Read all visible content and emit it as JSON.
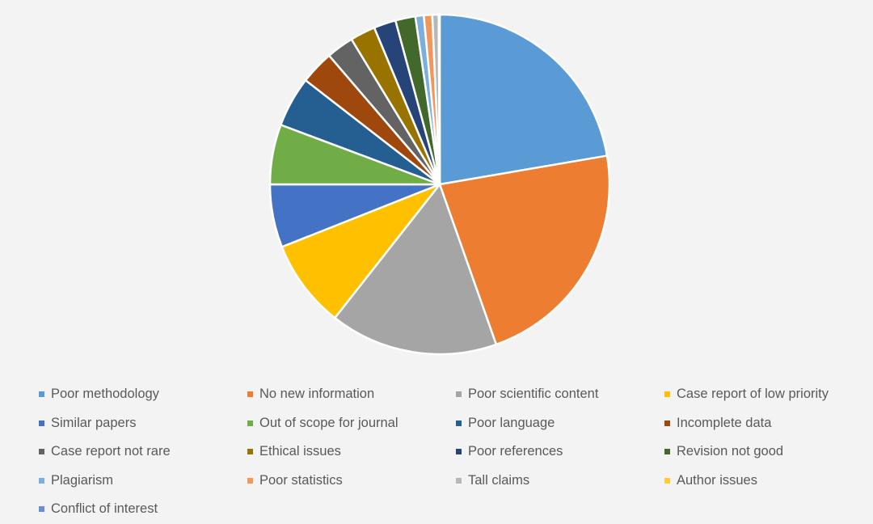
{
  "chart_data": {
    "type": "pie",
    "title": "",
    "legend_position": "bottom",
    "start_angle_deg": 0,
    "direction": "clockwise",
    "slices": [
      {
        "label": "Poor methodology",
        "value": 22.3,
        "color": "#5B9BD5"
      },
      {
        "label": "No new information",
        "value": 22.3,
        "color": "#ED7D31"
      },
      {
        "label": "Poor scientific content",
        "value": 16.0,
        "color": "#A5A5A5"
      },
      {
        "label": "Case report of low priority",
        "value": 8.4,
        "color": "#FFC000"
      },
      {
        "label": "Similar papers",
        "value": 6.0,
        "color": "#4472C4"
      },
      {
        "label": "Out of scope for journal",
        "value": 5.7,
        "color": "#70AD47"
      },
      {
        "label": "Poor language",
        "value": 4.8,
        "color": "#255E91"
      },
      {
        "label": "Incomplete data",
        "value": 3.2,
        "color": "#9E480E"
      },
      {
        "label": "Case report not rare",
        "value": 2.6,
        "color": "#636363"
      },
      {
        "label": "Ethical issues",
        "value": 2.4,
        "color": "#997300"
      },
      {
        "label": "Poor references",
        "value": 2.1,
        "color": "#264478"
      },
      {
        "label": "Revision not good",
        "value": 1.9,
        "color": "#43682B"
      },
      {
        "label": "Plagiarism",
        "value": 0.8,
        "color": "#7CAFDD"
      },
      {
        "label": "Poor statistics",
        "value": 0.8,
        "color": "#F1975A"
      },
      {
        "label": "Tall claims",
        "value": 0.6,
        "color": "#B7B7B7"
      },
      {
        "label": "Author issues",
        "value": 0.05,
        "color": "#FFCD33"
      },
      {
        "label": "Conflict of interest",
        "value": 0.05,
        "color": "#698ED0"
      }
    ]
  }
}
